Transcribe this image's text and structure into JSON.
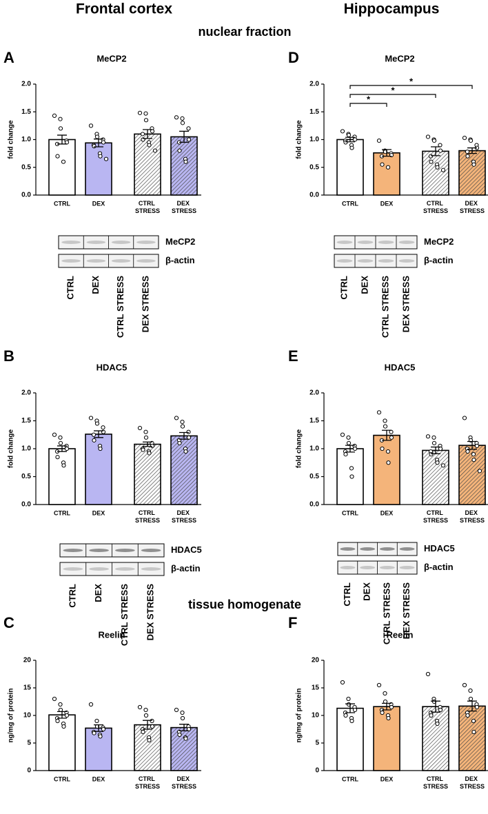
{
  "headers": {
    "left": "Frontal cortex",
    "right": "Hippocampus"
  },
  "sections": [
    "nuclear fraction",
    "tissue homogenate"
  ],
  "chart_data": [
    {
      "type": "bar",
      "panel": "A",
      "title": "MeCP2",
      "y_label": "fold change",
      "categories": [
        "CTRL",
        "DEX",
        "CTRL STRESS",
        "DEX STRESS"
      ],
      "values": [
        1.0,
        0.94,
        1.1,
        1.05
      ],
      "errors": [
        0.08,
        0.07,
        0.08,
        0.1
      ],
      "points": [
        [
          1.43,
          1.37,
          1.2,
          0.98,
          0.95,
          0.92,
          0.7,
          0.6
        ],
        [
          1.25,
          1.1,
          1.05,
          1.0,
          0.95,
          0.9,
          0.88,
          0.75,
          0.7,
          0.65
        ],
        [
          1.48,
          1.47,
          1.35,
          1.2,
          1.15,
          1.1,
          1.0,
          0.95,
          0.9,
          0.8
        ],
        [
          1.4,
          1.38,
          1.3,
          1.2,
          1.0,
          0.95,
          0.8,
          0.65,
          0.6
        ]
      ],
      "colors": [
        "#ffffff",
        "#b9b6f2",
        "#ffffff",
        "#b9b6f2"
      ],
      "hatch": [
        false,
        false,
        true,
        true
      ],
      "ylim": [
        0,
        2
      ],
      "yticks": [
        {
          "value": 0,
          "label": "0.0"
        },
        {
          "value": 0.5,
          "label": "0.5"
        },
        {
          "value": 1,
          "label": "1.0"
        },
        {
          "value": 1.5,
          "label": "1.5"
        },
        {
          "value": 2,
          "label": "2.0"
        }
      ]
    },
    {
      "type": "bar",
      "panel": "B",
      "title": "HDAC5",
      "y_label": "fold change",
      "categories": [
        "CTRL",
        "DEX",
        "CTRL STRESS",
        "DEX STRESS"
      ],
      "values": [
        1.0,
        1.26,
        1.08,
        1.23
      ],
      "errors": [
        0.05,
        0.06,
        0.04,
        0.06
      ],
      "points": [
        [
          1.25,
          1.2,
          1.1,
          1.05,
          1.0,
          0.95,
          0.85,
          0.75,
          0.7
        ],
        [
          1.55,
          1.5,
          1.45,
          1.38,
          1.3,
          1.25,
          1.15,
          1.05,
          1.0
        ],
        [
          1.37,
          1.3,
          1.2,
          1.1,
          1.05,
          1.0,
          0.98,
          0.95,
          0.92
        ],
        [
          1.55,
          1.48,
          1.4,
          1.3,
          1.2,
          1.15,
          1.1,
          1.0,
          0.95
        ]
      ],
      "colors": [
        "#ffffff",
        "#b9b6f2",
        "#ffffff",
        "#b9b6f2"
      ],
      "hatch": [
        false,
        false,
        true,
        true
      ],
      "ylim": [
        0,
        2
      ],
      "yticks": [
        {
          "value": 0,
          "label": "0.0"
        },
        {
          "value": 0.5,
          "label": "0.5"
        },
        {
          "value": 1,
          "label": "1.0"
        },
        {
          "value": 1.5,
          "label": "1.5"
        },
        {
          "value": 2,
          "label": "2.0"
        }
      ]
    },
    {
      "type": "bar",
      "panel": "C",
      "title": "Reelin",
      "y_label": "ng/mg of protein",
      "categories": [
        "CTRL",
        "DEX",
        "CTRL STRESS",
        "DEX STRESS"
      ],
      "values": [
        10.1,
        7.7,
        8.3,
        7.8
      ],
      "errors": [
        0.6,
        0.6,
        0.8,
        0.6
      ],
      "points": [
        [
          13,
          12,
          11,
          10.5,
          10,
          9.5,
          9,
          8.5,
          8
        ],
        [
          12,
          9,
          8,
          7.8,
          7.5,
          7,
          6.8,
          6.5,
          6.2
        ],
        [
          11.5,
          11,
          10,
          9,
          8,
          7.5,
          7,
          6,
          5.5
        ],
        [
          11,
          10.5,
          9.5,
          8,
          7.5,
          7,
          6.5,
          6,
          5.8
        ]
      ],
      "colors": [
        "#ffffff",
        "#b9b6f2",
        "#ffffff",
        "#b9b6f2"
      ],
      "hatch": [
        false,
        false,
        true,
        true
      ],
      "ylim": [
        0,
        20
      ],
      "yticks": [
        0,
        5,
        10,
        15,
        20
      ]
    },
    {
      "type": "bar",
      "panel": "D",
      "title": "MeCP2",
      "y_label": "fold change",
      "categories": [
        "CTRL",
        "DEX",
        "CTRL STRESS",
        "DEX STRESS"
      ],
      "values": [
        1.0,
        0.76,
        0.79,
        0.8
      ],
      "errors": [
        0.04,
        0.06,
        0.08,
        0.05
      ],
      "points": [
        [
          1.15,
          1.1,
          1.08,
          1.05,
          1.0,
          0.98,
          0.95,
          0.9,
          0.85
        ],
        [
          0.98,
          0.8,
          0.78,
          0.75,
          0.72,
          0.7,
          0.55,
          0.5
        ],
        [
          1.05,
          1.0,
          0.98,
          0.9,
          0.8,
          0.7,
          0.6,
          0.55,
          0.5,
          0.45
        ],
        [
          1.03,
          1.0,
          0.98,
          0.9,
          0.85,
          0.78,
          0.7,
          0.6,
          0.55
        ]
      ],
      "colors": [
        "#ffffff",
        "#f4b47a",
        "#ffffff",
        "#f4b47a"
      ],
      "hatch": [
        false,
        false,
        true,
        true
      ],
      "ylim": [
        0,
        2
      ],
      "yticks": [
        {
          "value": 0,
          "label": "0.0"
        },
        {
          "value": 0.5,
          "label": "0.5"
        },
        {
          "value": 1,
          "label": "1.0"
        },
        {
          "value": 1.5,
          "label": "1.5"
        },
        {
          "value": 2,
          "label": "2.0"
        }
      ],
      "annotations": [
        {
          "from": 0,
          "to": 1,
          "label": "*"
        },
        {
          "from": 0,
          "to": 2,
          "label": "*"
        },
        {
          "from": 0,
          "to": 3,
          "label": "*"
        }
      ]
    },
    {
      "type": "bar",
      "panel": "E",
      "title": "HDAC5",
      "y_label": "fold change",
      "categories": [
        "CTRL",
        "DEX",
        "CTRL STRESS",
        "DEX STRESS"
      ],
      "values": [
        1.0,
        1.24,
        0.97,
        1.06
      ],
      "errors": [
        0.06,
        0.09,
        0.06,
        0.07
      ],
      "points": [
        [
          1.25,
          1.2,
          1.1,
          1.05,
          1.0,
          0.95,
          0.9,
          0.65,
          0.5
        ],
        [
          1.65,
          1.5,
          1.4,
          1.3,
          1.2,
          1.15,
          1.0,
          0.95,
          0.75
        ],
        [
          1.22,
          1.2,
          1.1,
          1.05,
          1.0,
          0.95,
          0.9,
          0.8,
          0.75,
          0.7
        ],
        [
          1.55,
          1.2,
          1.15,
          1.1,
          1.05,
          1.0,
          0.95,
          0.9,
          0.8,
          0.6
        ]
      ],
      "colors": [
        "#ffffff",
        "#f4b47a",
        "#ffffff",
        "#f4b47a"
      ],
      "hatch": [
        false,
        false,
        true,
        true
      ],
      "ylim": [
        0,
        2
      ],
      "yticks": [
        {
          "value": 0,
          "label": "0.0"
        },
        {
          "value": 0.5,
          "label": "0.5"
        },
        {
          "value": 1,
          "label": "1.0"
        },
        {
          "value": 1.5,
          "label": "1.5"
        },
        {
          "value": 2,
          "label": "2.0"
        }
      ]
    },
    {
      "type": "bar",
      "panel": "F",
      "title": "Reelin",
      "y_label": "ng/mg of protein",
      "categories": [
        "CTRL",
        "DEX",
        "CTRL STRESS",
        "DEX STRESS"
      ],
      "values": [
        11.3,
        11.6,
        11.6,
        11.7
      ],
      "errors": [
        0.8,
        0.6,
        1.0,
        0.9
      ],
      "points": [
        [
          16,
          13,
          12,
          11.5,
          11,
          10.5,
          10,
          9.5,
          9
        ],
        [
          15.5,
          14,
          12.5,
          12,
          11.5,
          11,
          10.5,
          10,
          9.5
        ],
        [
          17.5,
          13,
          12.5,
          11.5,
          11,
          10.5,
          10,
          9,
          8.5
        ],
        [
          15.5,
          14.5,
          13,
          12,
          11.5,
          10.5,
          10,
          9,
          7
        ]
      ],
      "colors": [
        "#ffffff",
        "#f4b47a",
        "#ffffff",
        "#f4b47a"
      ],
      "hatch": [
        false,
        false,
        true,
        true
      ],
      "ylim": [
        0,
        20
      ],
      "yticks": [
        0,
        5,
        10,
        15,
        20
      ]
    }
  ],
  "blots": [
    {
      "bands": [
        "MeCP2",
        "β-actin"
      ],
      "lanes": [
        "CTRL",
        "DEX",
        "CTRL STRESS",
        "DEX STRESS"
      ]
    },
    {
      "bands": [
        "MeCP2",
        "β-actin"
      ],
      "lanes": [
        "CTRL",
        "DEX",
        "CTRL STRESS",
        "DEX STRESS"
      ]
    },
    {
      "bands": [
        "HDAC5",
        "β-actin"
      ],
      "lanes": [
        "CTRL",
        "DEX",
        "CTRL STRESS",
        "DEX STRESS"
      ]
    },
    {
      "bands": [
        "HDAC5",
        "β-actin"
      ],
      "lanes": [
        "CTRL",
        "DEX",
        "CTRL STRESS",
        "DEX STRESS"
      ]
    }
  ]
}
